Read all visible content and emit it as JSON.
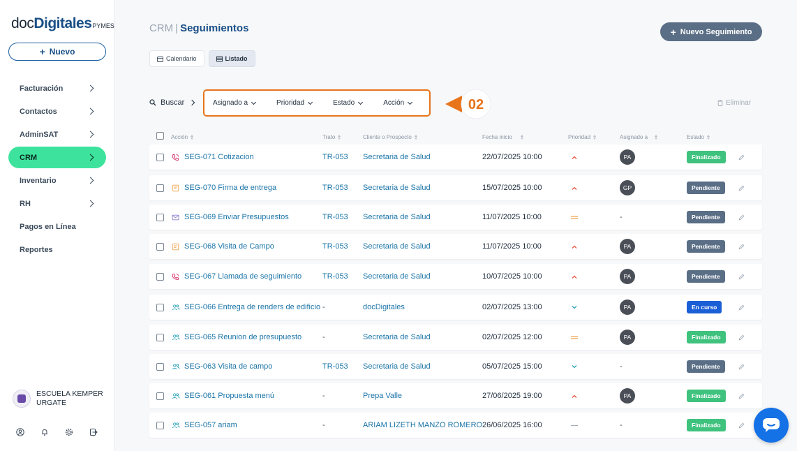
{
  "brand": {
    "doc": "doc",
    "bold": "Digitales",
    "suffix": "PYMES"
  },
  "sidebar": {
    "new_label": "Nuevo",
    "items": [
      {
        "label": "Facturación",
        "has_arrow": true,
        "active": false
      },
      {
        "label": "Contactos",
        "has_arrow": true,
        "active": false
      },
      {
        "label": "AdminSAT",
        "has_arrow": true,
        "active": false
      },
      {
        "label": "CRM",
        "has_arrow": true,
        "active": true
      },
      {
        "label": "Inventario",
        "has_arrow": true,
        "active": false
      },
      {
        "label": "RH",
        "has_arrow": true,
        "active": false
      },
      {
        "label": "Pagos en Línea",
        "has_arrow": false,
        "active": false
      },
      {
        "label": "Reportes",
        "has_arrow": false,
        "active": false
      }
    ],
    "org_name": "ESCUELA KEMPER URGATE"
  },
  "header": {
    "section": "CRM",
    "separator": "|",
    "title": "Seguimientos",
    "new_button": "Nuevo Seguimiento"
  },
  "view_tabs": {
    "calendar": "Calendario",
    "list": "Listado"
  },
  "toolbar": {
    "search": "Buscar",
    "filters": [
      "Asignado a",
      "Prioridad",
      "Estado",
      "Acción"
    ],
    "callout": "02",
    "delete": "Eliminar"
  },
  "table": {
    "headers": {
      "accion": "Acción",
      "trato": "Trato",
      "cliente": "Cliente o Prospecto",
      "fecha": "Fecha inicio",
      "prioridad": "Prioridad",
      "asignado": "Asignado a",
      "estado": "Estado"
    },
    "rows": [
      {
        "type": "call",
        "accion": "SEG-071 Cotizacion",
        "trato": "TR-053",
        "cliente": "Secretaria de Salud",
        "fecha": "22/07/2025 10:00",
        "prioridad": "alta",
        "asignado": "PA",
        "estado": "Finalizado"
      },
      {
        "type": "note",
        "accion": "SEG-070 Firma de entrega",
        "trato": "TR-053",
        "cliente": "Secretaria de Salud",
        "fecha": "15/07/2025 10:00",
        "prioridad": "alta",
        "asignado": "GP",
        "estado": "Pendiente"
      },
      {
        "type": "mail",
        "accion": "SEG-069 Enviar Presupuestos",
        "trato": "TR-053",
        "cliente": "Secretaria de Salud",
        "fecha": "11/07/2025 10:00",
        "prioridad": "media",
        "asignado": "-",
        "estado": "Pendiente"
      },
      {
        "type": "note",
        "accion": "SEG-068 Visita de Campo",
        "trato": "TR-053",
        "cliente": "Secretaria de Salud",
        "fecha": "11/07/2025 10:00",
        "prioridad": "alta",
        "asignado": "PA",
        "estado": "Pendiente"
      },
      {
        "type": "call",
        "accion": "SEG-067 Llamada de seguimiento",
        "trato": "TR-053",
        "cliente": "Secretaria de Salud",
        "fecha": "10/07/2025 10:00",
        "prioridad": "alta",
        "asignado": "PA",
        "estado": "Pendiente"
      },
      {
        "type": "meet",
        "accion": "SEG-066 Entrega de renders de edificio",
        "trato": "-",
        "cliente": "docDigitales",
        "fecha": "02/07/2025 13:00",
        "prioridad": "baja",
        "asignado": "PA",
        "estado": "En curso"
      },
      {
        "type": "meet",
        "accion": "SEG-065 Reunion de presupuesto",
        "trato": "-",
        "cliente": "Secretaria de Salud",
        "fecha": "02/07/2025 12:00",
        "prioridad": "media",
        "asignado": "PA",
        "estado": "Finalizado"
      },
      {
        "type": "meet",
        "accion": "SEG-063 Visita de campo",
        "trato": "TR-053",
        "cliente": "Secretaria de Salud",
        "fecha": "05/07/2025 15:00",
        "prioridad": "baja",
        "asignado": "-",
        "estado": "Pendiente"
      },
      {
        "type": "meet",
        "accion": "SEG-061 Propuesta menú",
        "trato": "-",
        "cliente": "Prepa Valle",
        "fecha": "27/06/2025 19:00",
        "prioridad": "alta",
        "asignado": "PA",
        "estado": "Finalizado"
      },
      {
        "type": "meet",
        "accion": "SEG-057 ariam",
        "trato": "-",
        "cliente": "ARIAM LIZETH MANZO ROMERO",
        "fecha": "26/06/2025 16:00",
        "prioridad": "ninguna",
        "asignado": "-",
        "estado": "Finalizado"
      }
    ]
  },
  "colors": {
    "accent_green": "#3de39c",
    "brand_blue": "#1a4f86",
    "link_blue": "#1a74a8",
    "callout_orange": "#e8741c",
    "status_finalizado": "#3fc27e",
    "status_pendiente": "#5a6e86",
    "status_encurso": "#1b5fd6",
    "priority_high": "#e8543c",
    "priority_medium": "#f0a04a",
    "priority_low": "#2aa3b8"
  },
  "icons": {
    "call": "phone-icon",
    "note": "note-icon",
    "mail": "mail-icon",
    "meet": "people-icon",
    "edit": "pencil-icon",
    "chat": "chat-icon"
  }
}
